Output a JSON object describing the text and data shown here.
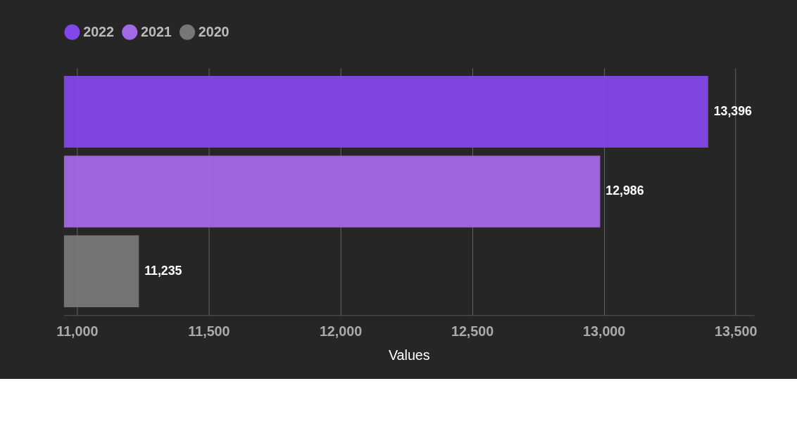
{
  "chart_data": {
    "type": "bar",
    "orientation": "horizontal",
    "categories": [
      null
    ],
    "series": [
      {
        "name": "2022",
        "color": "#8247e8",
        "values": [
          13396
        ],
        "value_labels": [
          "13,396"
        ]
      },
      {
        "name": "2021",
        "color": "#a368e6",
        "values": [
          12986
        ],
        "value_labels": [
          "12,986"
        ]
      },
      {
        "name": "2020",
        "color": "#777777",
        "values": [
          11235
        ],
        "value_labels": [
          "11,235"
        ]
      }
    ],
    "xlabel": "Values",
    "xlim": [
      10950,
      13570
    ],
    "xticks": [
      {
        "value": 11000,
        "label": "11,000"
      },
      {
        "value": 11500,
        "label": "11,500"
      },
      {
        "value": 12000,
        "label": "12,000"
      },
      {
        "value": 12500,
        "label": "12,500"
      },
      {
        "value": 13000,
        "label": "13,000"
      },
      {
        "value": 13500,
        "label": "13,500"
      }
    ],
    "grid": "x",
    "legend": "top left"
  }
}
